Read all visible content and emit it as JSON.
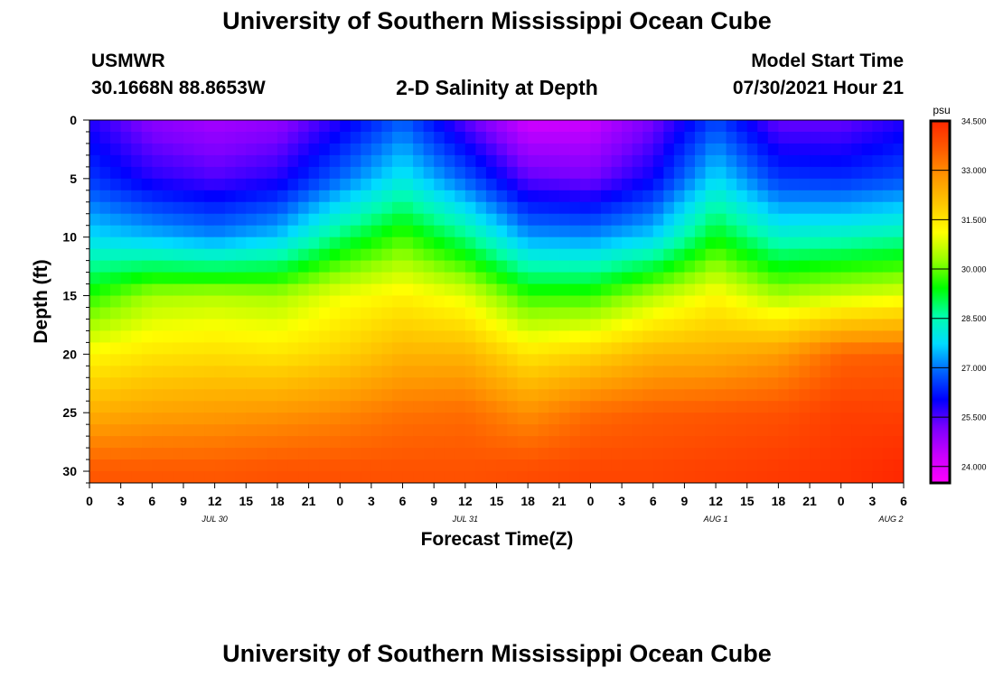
{
  "header": {
    "title": "University of Southern Mississippi Ocean Cube",
    "station": "USMWR",
    "coords": "30.1668N  88.8653W",
    "plot_title": "2-D Salinity at Depth",
    "model_start_label": "Model Start Time",
    "model_start_value": "07/30/2021 Hour 21",
    "footer_title": "University of Southern Mississippi Ocean Cube"
  },
  "colors": {
    "scale": [
      "#ff00ff",
      "#c800ff",
      "#7a00ff",
      "#0000ff",
      "#0064ff",
      "#00dcff",
      "#00ffaa",
      "#00ff00",
      "#96ff00",
      "#ffff00",
      "#ffc800",
      "#ff9600",
      "#ff5a00",
      "#ff2800"
    ]
  },
  "chart_data": {
    "type": "heatmap",
    "xlabel": "Forecast Time(Z)",
    "ylabel": "Depth (ft)",
    "x_tick_labels": [
      "0",
      "3",
      "6",
      "9",
      "12",
      "15",
      "18",
      "21",
      "0",
      "3",
      "6",
      "9",
      "12",
      "15",
      "18",
      "21",
      "0",
      "3",
      "6",
      "9",
      "12",
      "15",
      "18",
      "21",
      "0",
      "3",
      "6"
    ],
    "date_labels": [
      "JUL 30",
      "JUL 31",
      "AUG 1",
      "AUG 2"
    ],
    "y_ticks": [
      0,
      5,
      10,
      15,
      20,
      25,
      30
    ],
    "ylim": [
      0,
      31
    ],
    "colorbar": {
      "unit": "psu",
      "ticks": [
        "34.500",
        "33.000",
        "31.500",
        "30.000",
        "28.500",
        "27.000",
        "25.500",
        "24.000"
      ],
      "range": [
        23.5,
        34.5
      ]
    },
    "depths_ft": [
      0,
      5,
      10,
      15,
      20,
      25,
      30
    ],
    "times_h": [
      0,
      6,
      12,
      18,
      24,
      30,
      36,
      42,
      48,
      54,
      60,
      66,
      72,
      78
    ],
    "salinity_psu": [
      [
        25.8,
        25.0,
        24.7,
        24.9,
        25.8,
        26.8,
        25.4,
        24.2,
        24.3,
        25.2,
        26.6,
        25.3,
        25.3,
        25.8
      ],
      [
        26.5,
        25.8,
        25.5,
        25.8,
        26.9,
        28.0,
        26.8,
        25.4,
        25.2,
        26.0,
        27.8,
        26.5,
        26.4,
        26.7
      ],
      [
        27.8,
        27.5,
        27.2,
        27.6,
        28.9,
        29.8,
        28.8,
        27.3,
        27.2,
        27.7,
        29.4,
        28.3,
        28.4,
        28.6
      ],
      [
        29.6,
        30.4,
        30.5,
        30.4,
        31.0,
        31.3,
        30.9,
        29.7,
        29.7,
        30.5,
        31.2,
        30.4,
        30.7,
        30.9
      ],
      [
        31.2,
        31.5,
        31.6,
        31.5,
        31.8,
        32.3,
        32.3,
        31.5,
        31.8,
        32.3,
        32.4,
        32.7,
        33.5,
        33.6
      ],
      [
        32.4,
        32.6,
        32.7,
        32.8,
        33.0,
        33.3,
        33.4,
        32.9,
        33.4,
        33.6,
        33.7,
        33.8,
        34.1,
        34.1
      ],
      [
        33.7,
        33.7,
        33.7,
        33.8,
        33.8,
        33.8,
        33.8,
        33.9,
        34.0,
        34.0,
        34.1,
        34.2,
        34.3,
        34.5
      ]
    ]
  }
}
